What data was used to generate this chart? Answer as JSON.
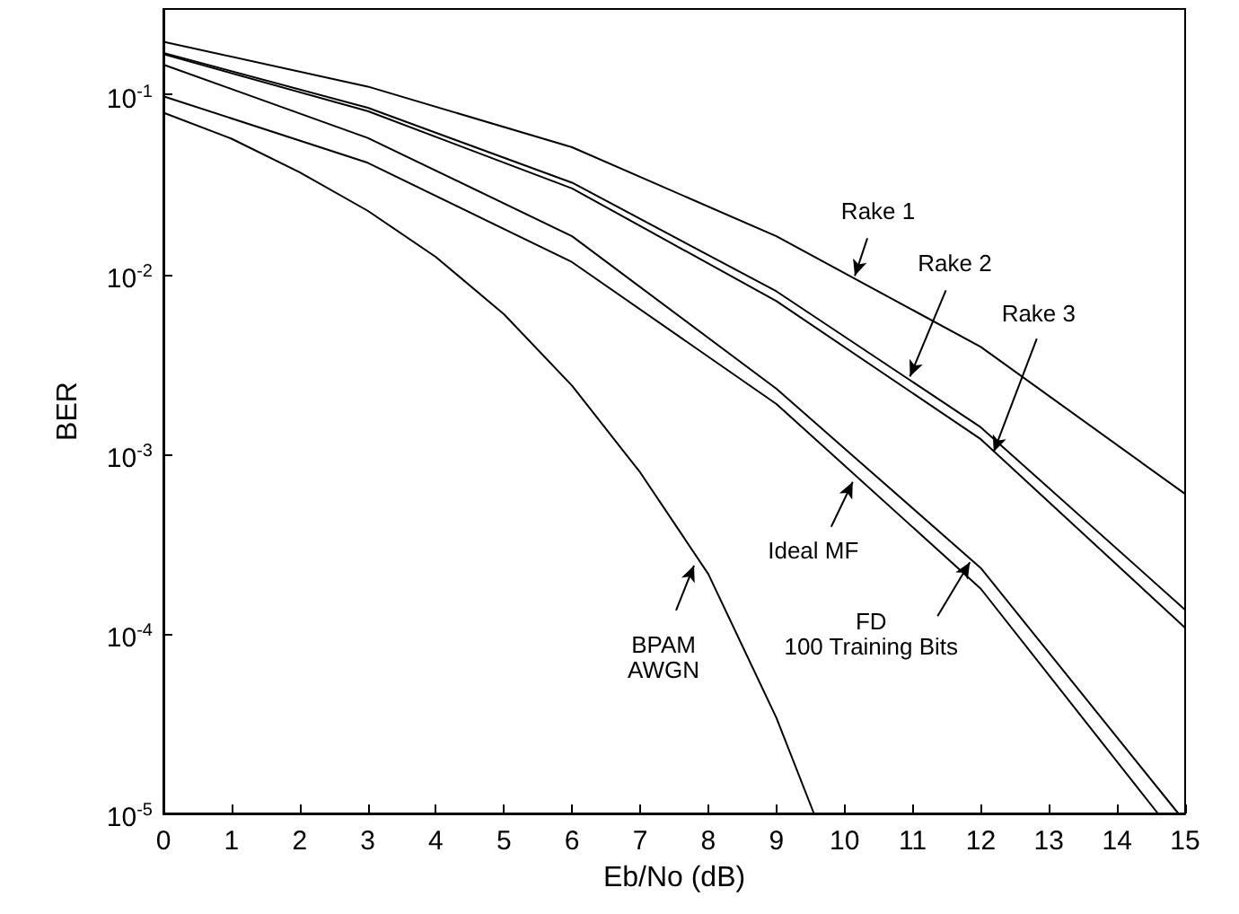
{
  "chart_data": {
    "type": "line",
    "xlabel": "Eb/No (dB)",
    "ylabel": "BER",
    "xlim": [
      0,
      15
    ],
    "xticks": [
      0,
      1,
      2,
      3,
      4,
      5,
      6,
      7,
      8,
      9,
      10,
      11,
      12,
      13,
      14,
      15
    ],
    "ylim": [
      1e-05,
      0.3
    ],
    "log": "y",
    "yticks": [
      {
        "value": 1e-05,
        "label": "10$^{-5}$"
      },
      {
        "value": 0.0001,
        "label": "10$^{-4}$"
      },
      {
        "value": 0.001,
        "label": "10$^{-3}$"
      },
      {
        "value": 0.01,
        "label": "10$^{-2}$"
      },
      {
        "value": 0.1,
        "label": "10$^{-1}$"
      }
    ],
    "grid": false,
    "marker": "none",
    "line_style": "solid",
    "series": [
      {
        "color": "#000000",
        "x": [
          0,
          3,
          6,
          9,
          12,
          15
        ],
        "values": [
          0.197,
          0.111,
          0.051,
          0.0163,
          0.00395,
          0.0006
        ]
      },
      {
        "color": "#000000",
        "x": [
          0,
          3,
          6,
          9,
          12,
          15
        ],
        "values": [
          0.171,
          0.0846,
          0.0324,
          0.00805,
          0.00141,
          0.000136
        ]
      },
      {
        "color": "#000000",
        "x": [
          0,
          3,
          6,
          9,
          12,
          15
        ],
        "values": [
          0.168,
          0.081,
          0.0301,
          0.0071,
          0.00121,
          0.000108
        ]
      },
      {
        "color": "#000000",
        "x": [
          0,
          3,
          6,
          9,
          12,
          14.9
        ],
        "values": [
          0.147,
          0.0575,
          0.0163,
          0.00231,
          0.000232,
          1e-05
        ]
      },
      {
        "color": "#000000",
        "x": [
          0,
          3,
          6,
          9,
          12,
          14.6
        ],
        "values": [
          0.098,
          0.0418,
          0.0117,
          0.0019,
          0.000178,
          1e-05
        ]
      },
      {
        "color": "#000000",
        "x": [
          0,
          1,
          2,
          3,
          4,
          5,
          6,
          7,
          8,
          9,
          9.55
        ],
        "values": [
          0.0794,
          0.0569,
          0.037,
          0.0226,
          0.0125,
          0.006,
          0.0024,
          0.00079,
          0.000215,
          3.4e-05,
          1e-05
        ]
      }
    ],
    "annotations": [
      {
        "text": "Rake 1",
        "x": 10.15,
        "y": 0.0098
      },
      {
        "text": "Rake 2",
        "x": 10.96,
        "y": 0.0027
      },
      {
        "text": "Rake 3",
        "x": 12.19,
        "y": 0.00103
      },
      {
        "text": "Ideal MF",
        "x": 10.12,
        "y": 0.0007
      },
      {
        "text": "FD\n100 Training Bits",
        "x": 11.84,
        "y": 0.00025
      },
      {
        "text": "BPAM\nAWGN",
        "x": 7.79,
        "y": 0.00024
      }
    ]
  }
}
